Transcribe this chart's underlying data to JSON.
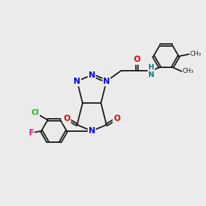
{
  "bg_color": "#ebebeb",
  "bond_color": "#1a1a1a",
  "bond_width": 1.4,
  "dbo": 0.055,
  "atom_colors": {
    "N": "#0000ee",
    "O": "#ee0000",
    "Cl": "#00bb00",
    "F": "#dd1199",
    "C": "#1a1a1a",
    "NH": "#007788"
  },
  "fs": 8.5,
  "fig_width": 3.0,
  "fig_height": 3.0,
  "dpi": 100,
  "xlim": [
    0.0,
    10.0
  ],
  "ylim": [
    1.5,
    8.5
  ]
}
